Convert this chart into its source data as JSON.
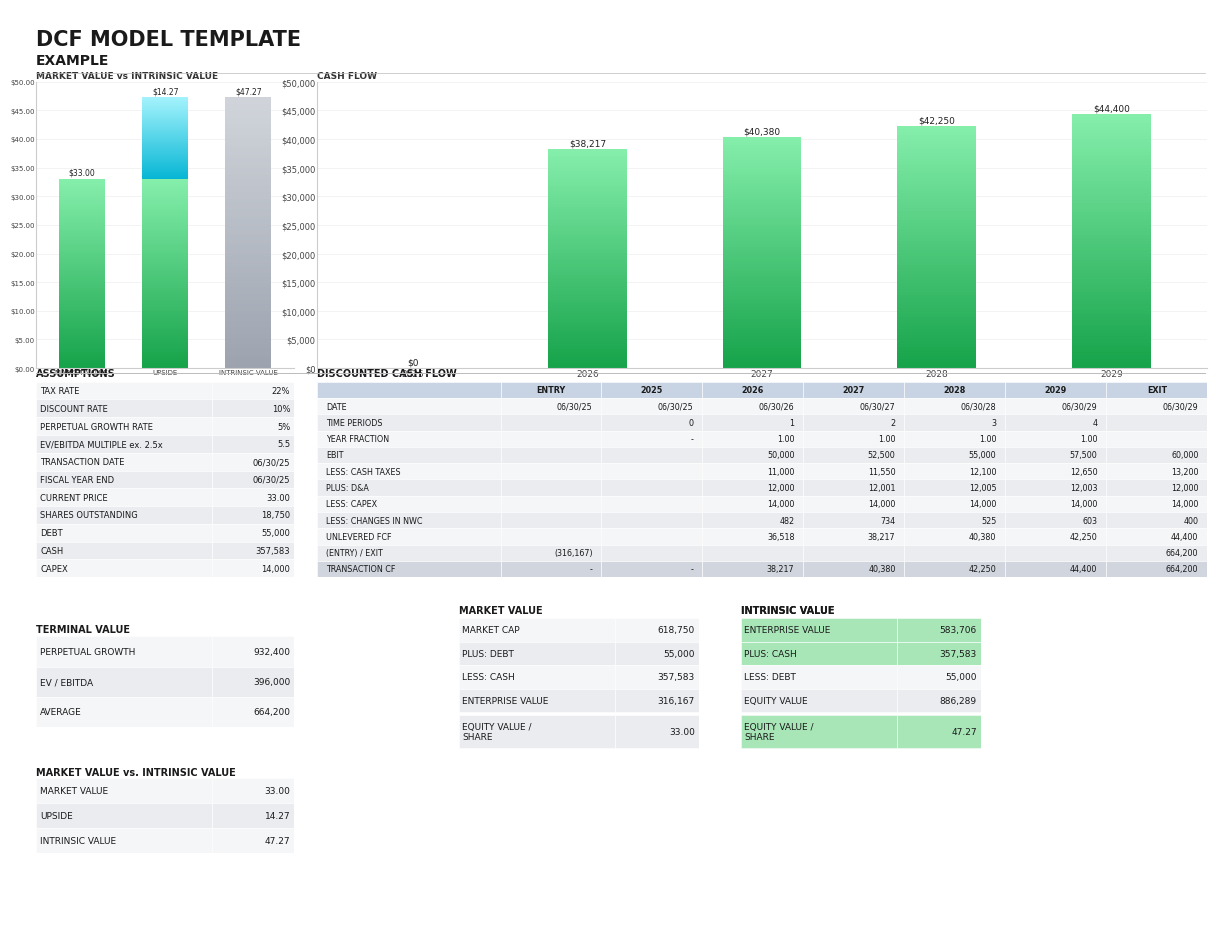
{
  "title": "DCF MODEL TEMPLATE",
  "subtitle": "EXAMPLE",
  "bg_color": "#FFFFFF",
  "mv_chart": {
    "title": "MARKET VALUE vs INTRINSIC VALUE",
    "categories": [
      "MARKET VALUE",
      "UPSIDE",
      "INTRINSIC VALUE"
    ],
    "values": [
      33.0,
      14.27,
      47.27
    ],
    "bar_bottoms": [
      0,
      33.0,
      0
    ],
    "labels": [
      "$33.00",
      "$14.27",
      "$47.27"
    ],
    "ylim": [
      0,
      50
    ],
    "yticks": [
      0,
      5,
      10,
      15,
      20,
      25,
      30,
      35,
      40,
      45,
      50
    ],
    "ytick_labels": [
      "$0.00",
      "$5.00",
      "$10.00",
      "$15.00",
      "$20.00",
      "$25.00",
      "$30.00",
      "$35.00",
      "$40.00",
      "$45.00",
      "$50.00"
    ]
  },
  "cf_chart": {
    "title": "CASH FLOW",
    "years": [
      "2025",
      "2026",
      "2027",
      "2028",
      "2029"
    ],
    "values": [
      0,
      38217,
      40380,
      42250,
      44400
    ],
    "labels": [
      "$0",
      "$38,217",
      "$40,380",
      "$42,250",
      "$44,400"
    ],
    "ylim": [
      0,
      50000
    ],
    "yticks": [
      0,
      5000,
      10000,
      15000,
      20000,
      25000,
      30000,
      35000,
      40000,
      45000,
      50000
    ],
    "ytick_labels": [
      "$0",
      "$5,000",
      "$10,000",
      "$15,000",
      "$20,000",
      "$25,000",
      "$30,000",
      "$35,000",
      "$40,000",
      "$45,000",
      "$50,000"
    ]
  },
  "assumptions": {
    "title": "ASSUMPTIONS",
    "rows": [
      [
        "TAX RATE",
        "22%"
      ],
      [
        "DISCOUNT RATE",
        "10%"
      ],
      [
        "PERPETUAL GROWTH RATE",
        "5%"
      ],
      [
        "EV/EBITDA MULTIPLE ex. 2.5x",
        "5.5"
      ],
      [
        "TRANSACTION DATE",
        "06/30/25"
      ],
      [
        "FISCAL YEAR END",
        "06/30/25"
      ],
      [
        "CURRENT PRICE",
        "33.00"
      ],
      [
        "SHARES OUTSTANDING",
        "18,750"
      ],
      [
        "DEBT",
        "55,000"
      ],
      [
        "CASH",
        "357,583"
      ],
      [
        "CAPEX",
        "14,000"
      ]
    ]
  },
  "dcf_table": {
    "title": "DISCOUNTED CASH FLOW",
    "col_headers": [
      "",
      "ENTRY",
      "2025",
      "2026",
      "2027",
      "2028",
      "2029",
      "EXIT"
    ],
    "col_widths": [
      0.2,
      0.11,
      0.11,
      0.11,
      0.11,
      0.11,
      0.11,
      0.11
    ],
    "rows": [
      [
        "DATE",
        "06/30/25",
        "06/30/25",
        "06/30/26",
        "06/30/27",
        "06/30/28",
        "06/30/29",
        "06/30/29"
      ],
      [
        "TIME PERIODS",
        "",
        "0",
        "1",
        "2",
        "3",
        "4",
        ""
      ],
      [
        "YEAR FRACTION",
        "",
        "-",
        "1.00",
        "1.00",
        "1.00",
        "1.00",
        ""
      ],
      [
        "EBIT",
        "",
        "",
        "50,000",
        "52,500",
        "55,000",
        "57,500",
        "60,000"
      ],
      [
        "LESS: CASH TAXES",
        "",
        "",
        "11,000",
        "11,550",
        "12,100",
        "12,650",
        "13,200"
      ],
      [
        "PLUS: D&A",
        "",
        "",
        "12,000",
        "12,001",
        "12,005",
        "12,003",
        "12,000"
      ],
      [
        "LESS: CAPEX",
        "",
        "",
        "14,000",
        "14,000",
        "14,000",
        "14,000",
        "14,000"
      ],
      [
        "LESS: CHANGES IN NWC",
        "",
        "",
        "482",
        "734",
        "525",
        "603",
        "400"
      ],
      [
        "UNLEVERED FCF",
        "",
        "",
        "36,518",
        "38,217",
        "40,380",
        "42,250",
        "44,400"
      ],
      [
        "(ENTRY) / EXIT",
        "(316,167)",
        "",
        "",
        "",
        "",
        "",
        "664,200"
      ],
      [
        "TRANSACTION CF",
        "-",
        "-",
        "38,217",
        "40,380",
        "42,250",
        "44,400",
        "664,200"
      ]
    ]
  },
  "terminal_value": {
    "title": "TERMINAL VALUE",
    "rows": [
      [
        "PERPETUAL GROWTH",
        "932,400"
      ],
      [
        "EV / EBITDA",
        "396,000"
      ],
      [
        "AVERAGE",
        "664,200"
      ]
    ]
  },
  "market_value_table": {
    "title": "MARKET VALUE",
    "rows": [
      [
        "MARKET CAP",
        "618,750"
      ],
      [
        "PLUS: DEBT",
        "55,000"
      ],
      [
        "LESS: CASH",
        "357,583"
      ],
      [
        "ENTERPRISE VALUE",
        "316,167"
      ]
    ],
    "extra_row": [
      "EQUITY VALUE /\nSHARE",
      "33.00"
    ]
  },
  "intrinsic_value_table": {
    "title": "INTRINSIC VALUE",
    "rows": [
      [
        "ENTERPRISE VALUE",
        "583,706"
      ],
      [
        "PLUS: CASH",
        "357,583"
      ],
      [
        "LESS: DEBT",
        "55,000"
      ],
      [
        "EQUITY VALUE",
        "886,289"
      ]
    ],
    "extra_row": [
      "EQUITY VALUE /\nSHARE",
      "47.27"
    ],
    "green_rows": [
      0,
      1
    ]
  },
  "mv_intrinsic_table": {
    "title": "MARKET VALUE vs. INTRINSIC VALUE",
    "rows": [
      [
        "MARKET VALUE",
        "33.00"
      ],
      [
        "UPSIDE",
        "14.27"
      ],
      [
        "INTRINSIC VALUE",
        "47.27"
      ]
    ]
  }
}
